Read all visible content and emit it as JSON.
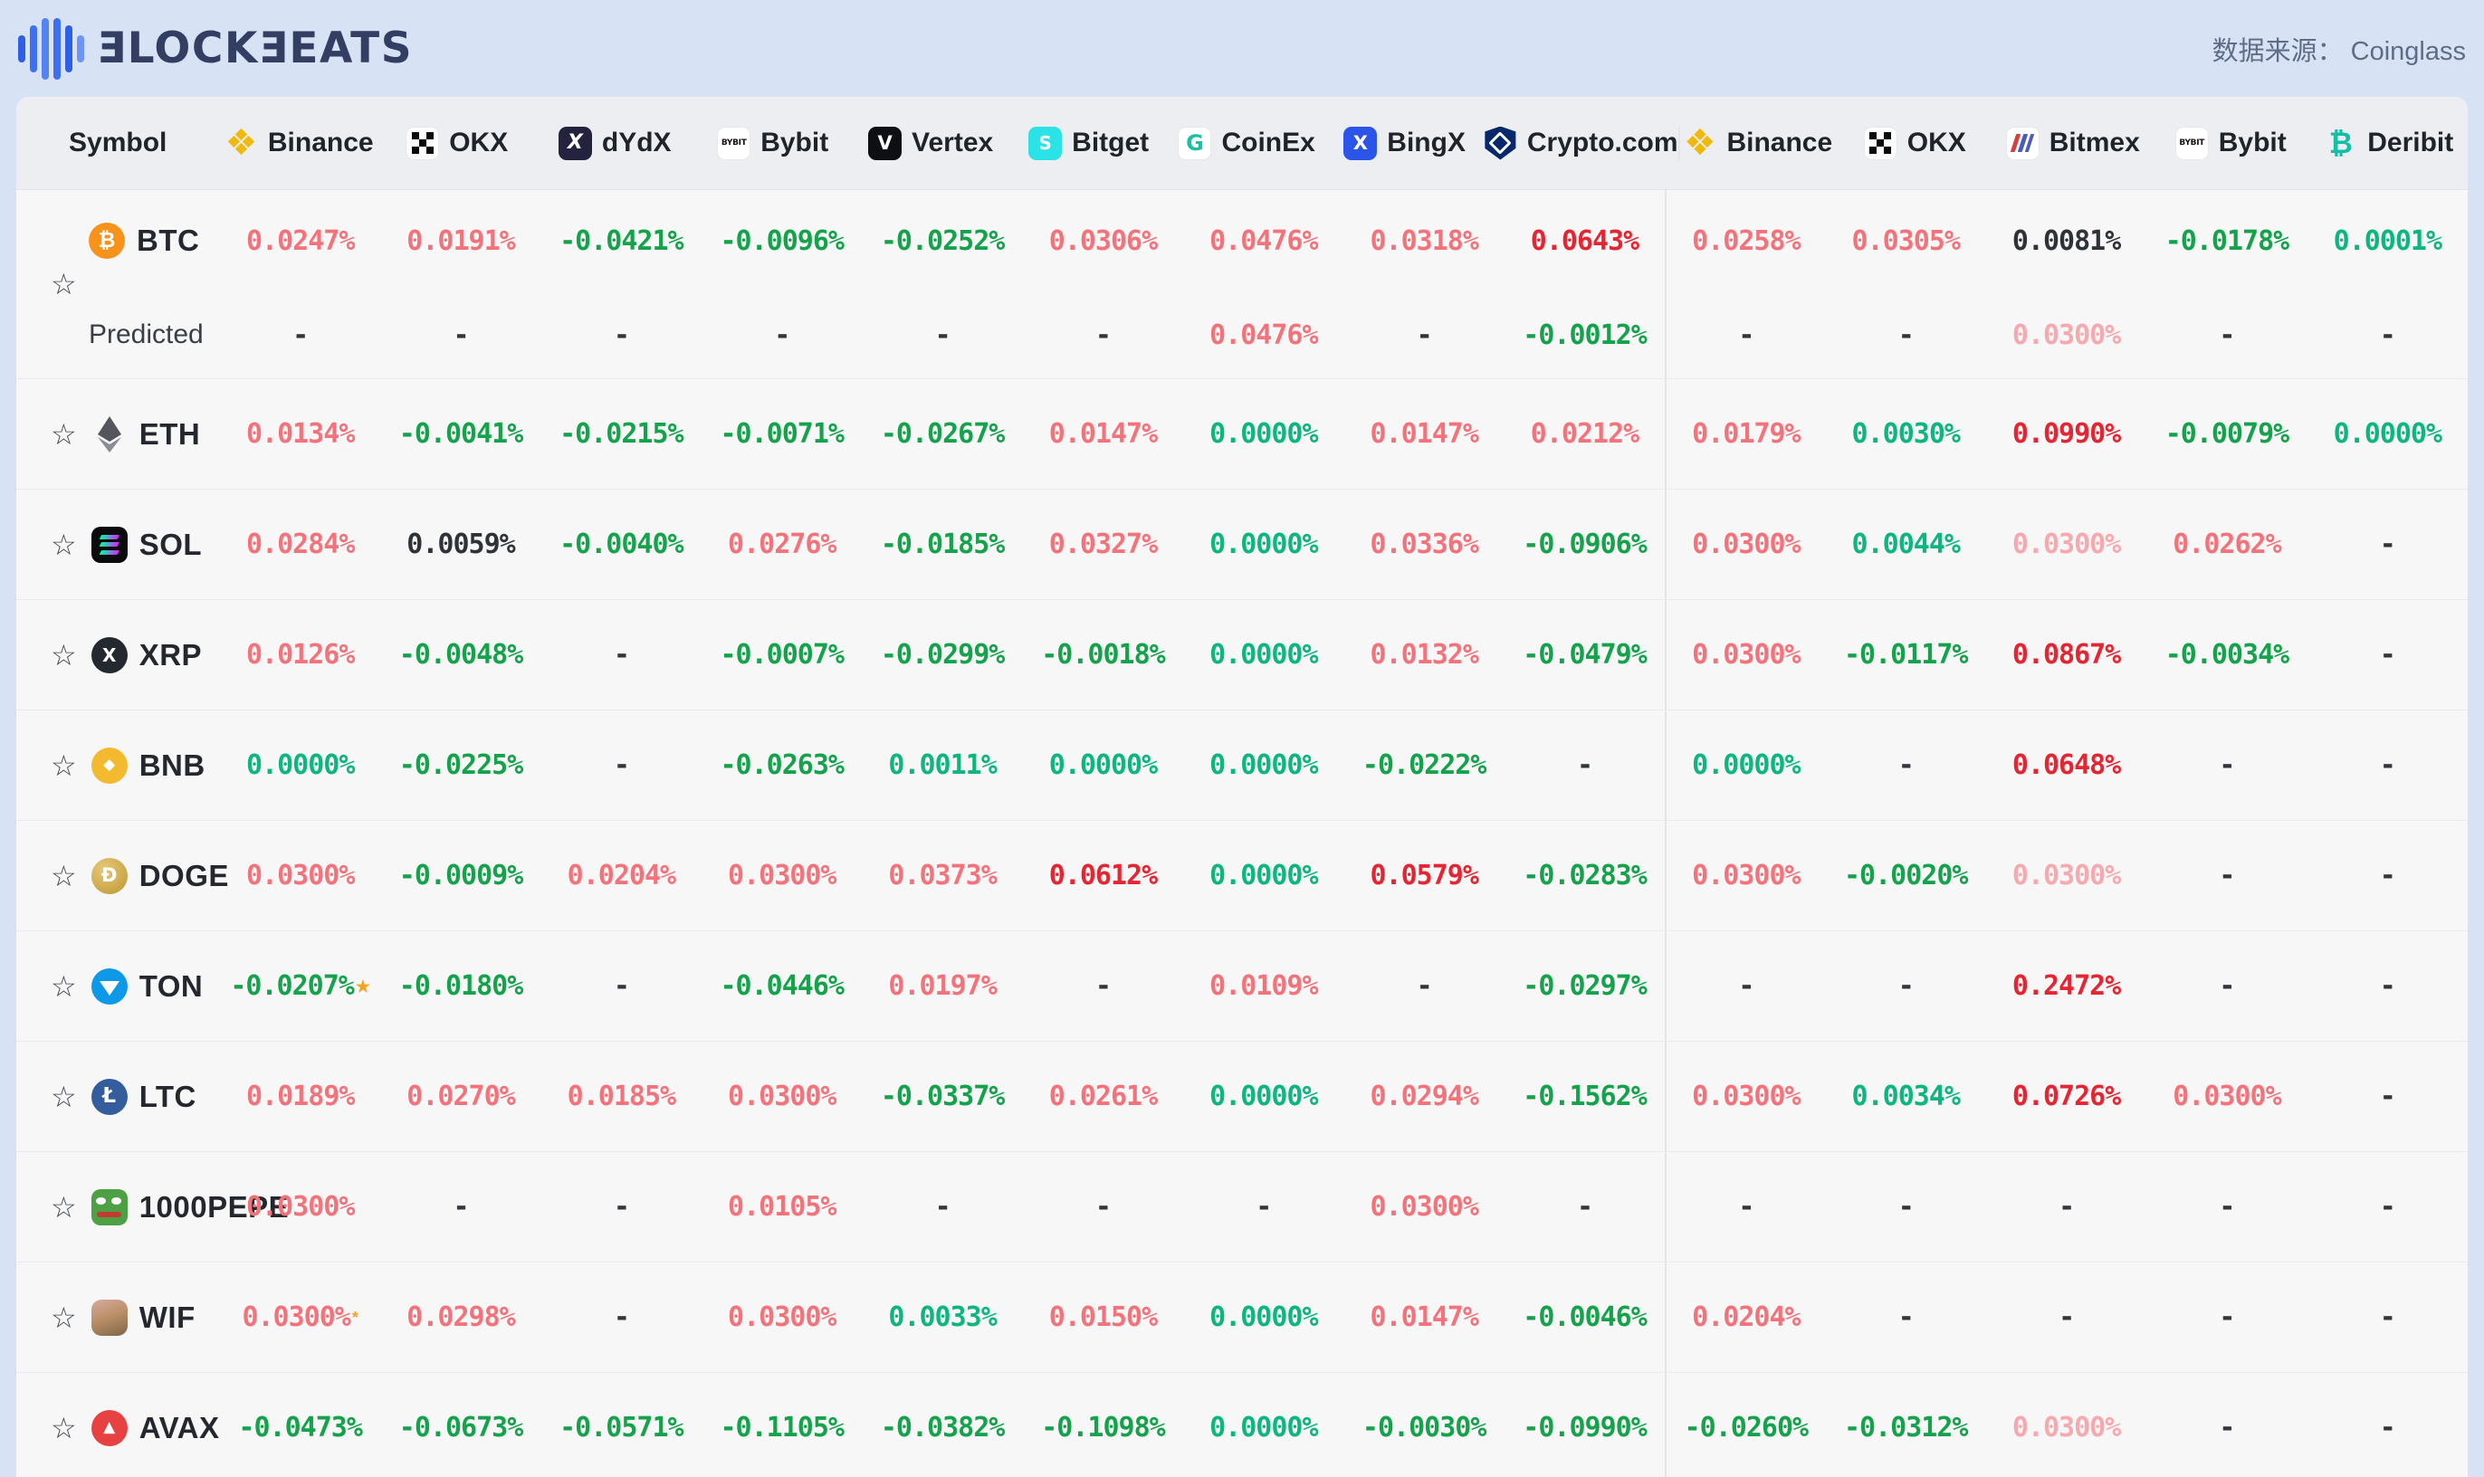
{
  "header": {
    "logo_text": "ƎLOCKƎEATS",
    "source_label": "数据来源： Coinglass"
  },
  "icon_glyphs": {
    "star": "☆",
    "binance": "❖",
    "dydx": "X",
    "bybit": "BYBIT",
    "vertex": "V",
    "bitget": "S",
    "coinex": "G",
    "bingx": "X",
    "deribit": "₿",
    "btc": "₿",
    "bnb": "◆",
    "xrp": "X",
    "doge": "Ð",
    "ltc": "Ł",
    "avax": "▲"
  },
  "palette": {
    "positive_red": "#F4737B",
    "pale_red": "#F6A9AE",
    "extreme_red": "#E52531",
    "negative_green": "#14A24B",
    "zero_teal": "#0CB67E",
    "neutral_black": "#2F3338",
    "marker_orange": "#F6A41D",
    "page_background": "#D7E3F5",
    "table_background": "#F7F7F8",
    "header_band": "#ECEEF2"
  },
  "table": {
    "symbol_header": "Symbol",
    "exchanges": [
      {
        "label": "Binance",
        "icon": "binance"
      },
      {
        "label": "OKX",
        "icon": "okx"
      },
      {
        "label": "dYdX",
        "icon": "dydx"
      },
      {
        "label": "Bybit",
        "icon": "bybit"
      },
      {
        "label": "Vertex",
        "icon": "vertex"
      },
      {
        "label": "Bitget",
        "icon": "bitget"
      },
      {
        "label": "CoinEx",
        "icon": "coinex"
      },
      {
        "label": "BingX",
        "icon": "bingx"
      },
      {
        "label": "Crypto.com",
        "icon": "cryptocom"
      },
      {
        "label": "Binance",
        "icon": "binance"
      },
      {
        "label": "OKX",
        "icon": "okx"
      },
      {
        "label": "Bitmex",
        "icon": "bitmex"
      },
      {
        "label": "Bybit",
        "icon": "bybit"
      },
      {
        "label": "Deribit",
        "icon": "deribit"
      }
    ],
    "rows": [
      {
        "symbol": "BTC",
        "icon": "btc",
        "values": [
          {
            "v": "0.0247%",
            "c": "red"
          },
          {
            "v": "0.0191%",
            "c": "red"
          },
          {
            "v": "-0.0421%",
            "c": "green"
          },
          {
            "v": "-0.0096%",
            "c": "green"
          },
          {
            "v": "-0.0252%",
            "c": "green"
          },
          {
            "v": "0.0306%",
            "c": "red"
          },
          {
            "v": "0.0476%",
            "c": "red"
          },
          {
            "v": "0.0318%",
            "c": "red"
          },
          {
            "v": "0.0643%",
            "c": "strong"
          },
          {
            "v": "0.0258%",
            "c": "red"
          },
          {
            "v": "0.0305%",
            "c": "red"
          },
          {
            "v": "0.0081%",
            "c": "black"
          },
          {
            "v": "-0.0178%",
            "c": "green"
          },
          {
            "v": "0.0001%",
            "c": "teal"
          }
        ],
        "predicted": {
          "label": "Predicted",
          "values": [
            {
              "v": "-",
              "c": "dash"
            },
            {
              "v": "-",
              "c": "dash"
            },
            {
              "v": "-",
              "c": "dash"
            },
            {
              "v": "-",
              "c": "dash"
            },
            {
              "v": "-",
              "c": "dash"
            },
            {
              "v": "-",
              "c": "dash"
            },
            {
              "v": "0.0476%",
              "c": "red"
            },
            {
              "v": "-",
              "c": "dash"
            },
            {
              "v": "-0.0012%",
              "c": "green"
            },
            {
              "v": "-",
              "c": "dash"
            },
            {
              "v": "-",
              "c": "dash"
            },
            {
              "v": "0.0300%",
              "c": "pale"
            },
            {
              "v": "-",
              "c": "dash"
            },
            {
              "v": "-",
              "c": "dash"
            }
          ]
        }
      },
      {
        "symbol": "ETH",
        "icon": "eth",
        "values": [
          {
            "v": "0.0134%",
            "c": "red"
          },
          {
            "v": "-0.0041%",
            "c": "green"
          },
          {
            "v": "-0.0215%",
            "c": "green"
          },
          {
            "v": "-0.0071%",
            "c": "green"
          },
          {
            "v": "-0.0267%",
            "c": "green"
          },
          {
            "v": "0.0147%",
            "c": "red"
          },
          {
            "v": "0.0000%",
            "c": "teal"
          },
          {
            "v": "0.0147%",
            "c": "red"
          },
          {
            "v": "0.0212%",
            "c": "red"
          },
          {
            "v": "0.0179%",
            "c": "red"
          },
          {
            "v": "0.0030%",
            "c": "teal"
          },
          {
            "v": "0.0990%",
            "c": "strong"
          },
          {
            "v": "-0.0079%",
            "c": "green"
          },
          {
            "v": "0.0000%",
            "c": "teal"
          }
        ]
      },
      {
        "symbol": "SOL",
        "icon": "sol",
        "values": [
          {
            "v": "0.0284%",
            "c": "red"
          },
          {
            "v": "0.0059%",
            "c": "black"
          },
          {
            "v": "-0.0040%",
            "c": "green"
          },
          {
            "v": "0.0276%",
            "c": "red"
          },
          {
            "v": "-0.0185%",
            "c": "green"
          },
          {
            "v": "0.0327%",
            "c": "red"
          },
          {
            "v": "0.0000%",
            "c": "teal"
          },
          {
            "v": "0.0336%",
            "c": "red"
          },
          {
            "v": "-0.0906%",
            "c": "green"
          },
          {
            "v": "0.0300%",
            "c": "red"
          },
          {
            "v": "0.0044%",
            "c": "teal"
          },
          {
            "v": "0.0300%",
            "c": "pale"
          },
          {
            "v": "0.0262%",
            "c": "red"
          },
          {
            "v": "-",
            "c": "dash"
          }
        ]
      },
      {
        "symbol": "XRP",
        "icon": "xrp",
        "values": [
          {
            "v": "0.0126%",
            "c": "red"
          },
          {
            "v": "-0.0048%",
            "c": "green"
          },
          {
            "v": "-",
            "c": "dash"
          },
          {
            "v": "-0.0007%",
            "c": "green"
          },
          {
            "v": "-0.0299%",
            "c": "green"
          },
          {
            "v": "-0.0018%",
            "c": "green"
          },
          {
            "v": "0.0000%",
            "c": "teal"
          },
          {
            "v": "0.0132%",
            "c": "red"
          },
          {
            "v": "-0.0479%",
            "c": "green"
          },
          {
            "v": "0.0300%",
            "c": "red"
          },
          {
            "v": "-0.0117%",
            "c": "green"
          },
          {
            "v": "0.0867%",
            "c": "strong"
          },
          {
            "v": "-0.0034%",
            "c": "green"
          },
          {
            "v": "-",
            "c": "dash"
          }
        ]
      },
      {
        "symbol": "BNB",
        "icon": "bnb",
        "values": [
          {
            "v": "0.0000%",
            "c": "teal"
          },
          {
            "v": "-0.0225%",
            "c": "green"
          },
          {
            "v": "-",
            "c": "dash"
          },
          {
            "v": "-0.0263%",
            "c": "green"
          },
          {
            "v": "0.0011%",
            "c": "teal"
          },
          {
            "v": "0.0000%",
            "c": "teal"
          },
          {
            "v": "0.0000%",
            "c": "teal"
          },
          {
            "v": "-0.0222%",
            "c": "green"
          },
          {
            "v": "-",
            "c": "dash"
          },
          {
            "v": "0.0000%",
            "c": "teal"
          },
          {
            "v": "-",
            "c": "dash"
          },
          {
            "v": "0.0648%",
            "c": "strong"
          },
          {
            "v": "-",
            "c": "dash"
          },
          {
            "v": "-",
            "c": "dash"
          }
        ]
      },
      {
        "symbol": "DOGE",
        "icon": "doge",
        "values": [
          {
            "v": "0.0300%",
            "c": "red"
          },
          {
            "v": "-0.0009%",
            "c": "green"
          },
          {
            "v": "0.0204%",
            "c": "red"
          },
          {
            "v": "0.0300%",
            "c": "red"
          },
          {
            "v": "0.0373%",
            "c": "red"
          },
          {
            "v": "0.0612%",
            "c": "strong"
          },
          {
            "v": "0.0000%",
            "c": "teal"
          },
          {
            "v": "0.0579%",
            "c": "strong"
          },
          {
            "v": "-0.0283%",
            "c": "green"
          },
          {
            "v": "0.0300%",
            "c": "red"
          },
          {
            "v": "-0.0020%",
            "c": "green"
          },
          {
            "v": "0.0300%",
            "c": "pale"
          },
          {
            "v": "-",
            "c": "dash"
          },
          {
            "v": "-",
            "c": "dash"
          }
        ]
      },
      {
        "symbol": "TON",
        "icon": "ton",
        "values": [
          {
            "v": "-0.0207%",
            "c": "green",
            "m": "★"
          },
          {
            "v": "-0.0180%",
            "c": "green"
          },
          {
            "v": "-",
            "c": "dash"
          },
          {
            "v": "-0.0446%",
            "c": "green"
          },
          {
            "v": "0.0197%",
            "c": "red"
          },
          {
            "v": "-",
            "c": "dash"
          },
          {
            "v": "0.0109%",
            "c": "red"
          },
          {
            "v": "-",
            "c": "dash"
          },
          {
            "v": "-0.0297%",
            "c": "green"
          },
          {
            "v": "-",
            "c": "dash"
          },
          {
            "v": "-",
            "c": "dash"
          },
          {
            "v": "0.2472%",
            "c": "strong"
          },
          {
            "v": "-",
            "c": "dash"
          },
          {
            "v": "-",
            "c": "dash"
          }
        ]
      },
      {
        "symbol": "LTC",
        "icon": "ltc",
        "values": [
          {
            "v": "0.0189%",
            "c": "red"
          },
          {
            "v": "0.0270%",
            "c": "red"
          },
          {
            "v": "0.0185%",
            "c": "red"
          },
          {
            "v": "0.0300%",
            "c": "red"
          },
          {
            "v": "-0.0337%",
            "c": "green"
          },
          {
            "v": "0.0261%",
            "c": "red"
          },
          {
            "v": "0.0000%",
            "c": "teal"
          },
          {
            "v": "0.0294%",
            "c": "red"
          },
          {
            "v": "-0.1562%",
            "c": "green"
          },
          {
            "v": "0.0300%",
            "c": "red"
          },
          {
            "v": "0.0034%",
            "c": "teal"
          },
          {
            "v": "0.0726%",
            "c": "strong"
          },
          {
            "v": "0.0300%",
            "c": "red"
          },
          {
            "v": "-",
            "c": "dash"
          }
        ]
      },
      {
        "symbol": "1000PEPE",
        "icon": "pepe",
        "values": [
          {
            "v": "0.0300%",
            "c": "red"
          },
          {
            "v": "-",
            "c": "dash"
          },
          {
            "v": "-",
            "c": "dash"
          },
          {
            "v": "0.0105%",
            "c": "red"
          },
          {
            "v": "-",
            "c": "dash"
          },
          {
            "v": "-",
            "c": "dash"
          },
          {
            "v": "-",
            "c": "dash"
          },
          {
            "v": "0.0300%",
            "c": "red"
          },
          {
            "v": "-",
            "c": "dash"
          },
          {
            "v": "-",
            "c": "dash"
          },
          {
            "v": "-",
            "c": "dash"
          },
          {
            "v": "-",
            "c": "dash"
          },
          {
            "v": "-",
            "c": "dash"
          },
          {
            "v": "-",
            "c": "dash"
          }
        ]
      },
      {
        "symbol": "WIF",
        "icon": "wif",
        "values": [
          {
            "v": "0.0300%",
            "c": "red",
            "m": "*"
          },
          {
            "v": "0.0298%",
            "c": "red"
          },
          {
            "v": "-",
            "c": "dash"
          },
          {
            "v": "0.0300%",
            "c": "red"
          },
          {
            "v": "0.0033%",
            "c": "teal"
          },
          {
            "v": "0.0150%",
            "c": "red"
          },
          {
            "v": "0.0000%",
            "c": "teal"
          },
          {
            "v": "0.0147%",
            "c": "red"
          },
          {
            "v": "-0.0046%",
            "c": "green"
          },
          {
            "v": "0.0204%",
            "c": "red"
          },
          {
            "v": "-",
            "c": "dash"
          },
          {
            "v": "-",
            "c": "dash"
          },
          {
            "v": "-",
            "c": "dash"
          },
          {
            "v": "-",
            "c": "dash"
          }
        ]
      },
      {
        "symbol": "AVAX",
        "icon": "avax",
        "values": [
          {
            "v": "-0.0473%",
            "c": "green"
          },
          {
            "v": "-0.0673%",
            "c": "green"
          },
          {
            "v": "-0.0571%",
            "c": "green"
          },
          {
            "v": "-0.1105%",
            "c": "green"
          },
          {
            "v": "-0.0382%",
            "c": "green"
          },
          {
            "v": "-0.1098%",
            "c": "green"
          },
          {
            "v": "0.0000%",
            "c": "teal"
          },
          {
            "v": "-0.0030%",
            "c": "green"
          },
          {
            "v": "-0.0990%",
            "c": "green"
          },
          {
            "v": "-0.0260%",
            "c": "green"
          },
          {
            "v": "-0.0312%",
            "c": "green"
          },
          {
            "v": "0.0300%",
            "c": "pale"
          },
          {
            "v": "-",
            "c": "dash"
          },
          {
            "v": "-",
            "c": "dash"
          }
        ]
      }
    ]
  }
}
